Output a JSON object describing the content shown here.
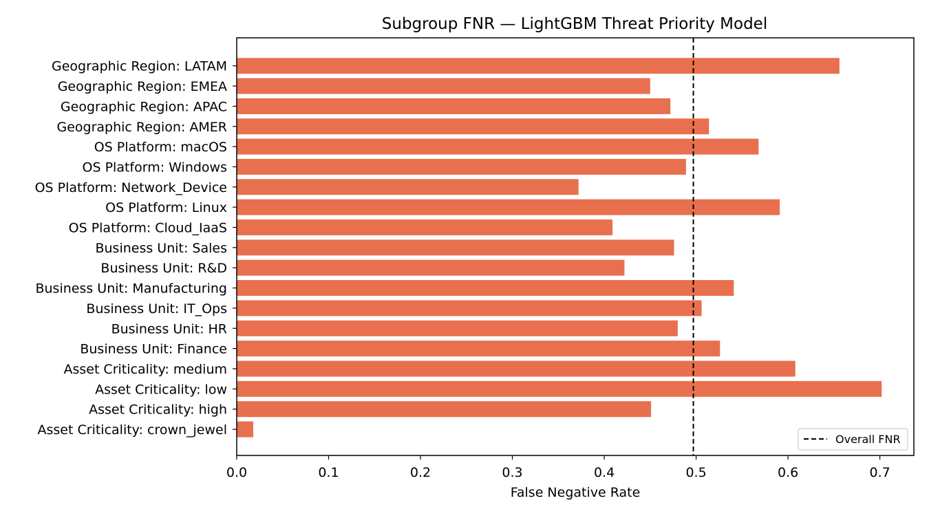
{
  "chart_data": {
    "type": "bar",
    "orientation": "horizontal",
    "title": "Subgroup FNR — LightGBM Threat Priority Model",
    "xlabel": "False Negative Rate",
    "ylabel": "",
    "xlim": [
      0.0,
      0.737
    ],
    "xticks": [
      0.0,
      0.1,
      0.2,
      0.3,
      0.4,
      0.5,
      0.6,
      0.7
    ],
    "xtick_labels": [
      "0.0",
      "0.1",
      "0.2",
      "0.3",
      "0.4",
      "0.5",
      "0.6",
      "0.7"
    ],
    "grid": false,
    "bar_color": "#e8704f",
    "categories": [
      "Asset Criticality: crown_jewel",
      "Asset Criticality: high",
      "Asset Criticality: low",
      "Asset Criticality: medium",
      "Business Unit: Finance",
      "Business Unit: HR",
      "Business Unit: IT_Ops",
      "Business Unit: Manufacturing",
      "Business Unit: R&D",
      "Business Unit: Sales",
      "OS Platform: Cloud_IaaS",
      "OS Platform: Linux",
      "OS Platform: Network_Device",
      "OS Platform: Windows",
      "OS Platform: macOS",
      "Geographic Region: AMER",
      "Geographic Region: APAC",
      "Geographic Region: EMEA",
      "Geographic Region: LATAM"
    ],
    "values": [
      0.018,
      0.451,
      0.702,
      0.608,
      0.526,
      0.48,
      0.506,
      0.541,
      0.422,
      0.476,
      0.409,
      0.591,
      0.372,
      0.489,
      0.568,
      0.514,
      0.472,
      0.45,
      0.656
    ],
    "reference_line": {
      "value": 0.497,
      "label": "Overall FNR",
      "style": "dashed",
      "color": "#000000"
    },
    "legend": {
      "placement": "lower-right",
      "entries": [
        "Overall FNR"
      ]
    }
  }
}
